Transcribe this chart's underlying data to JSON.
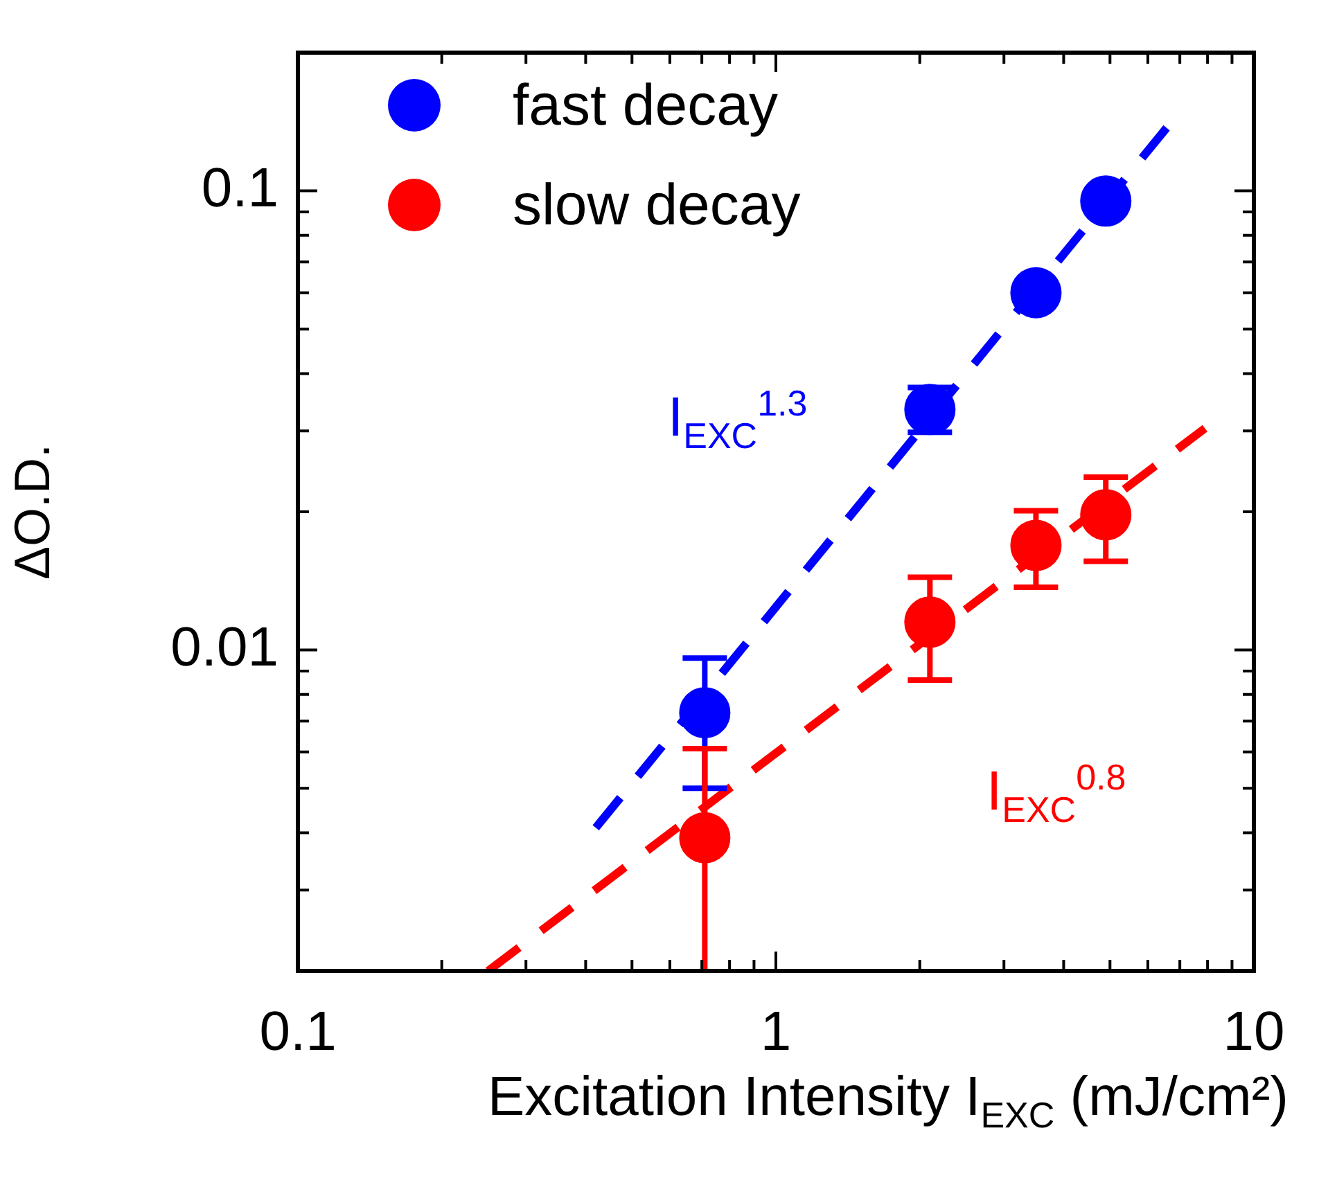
{
  "chart_data": {
    "type": "scatter",
    "xlabel": "Excitation Intensity I$_{EXC}$ (mJ/cm²)",
    "ylabel": "ΔO.D.",
    "log": "xy",
    "marker": "circle",
    "legend": "top left",
    "xlim": [
      0.1,
      10
    ],
    "xticks": [
      0.1,
      {
        "value": 0.2,
        "label": null
      },
      {
        "value": 0.3,
        "label": null
      },
      {
        "value": 0.4,
        "label": null
      },
      {
        "value": 0.5,
        "label": null
      },
      {
        "value": 0.6,
        "label": null
      },
      {
        "value": 0.7,
        "label": null
      },
      {
        "value": 0.8,
        "label": null
      },
      {
        "value": 0.9,
        "label": null
      },
      1,
      {
        "value": 2,
        "label": null
      },
      {
        "value": 3,
        "label": null
      },
      {
        "value": 4,
        "label": null
      },
      {
        "value": 5,
        "label": null
      },
      {
        "value": 6,
        "label": null
      },
      {
        "value": 7,
        "label": null
      },
      {
        "value": 8,
        "label": null
      },
      {
        "value": 9,
        "label": null
      },
      10
    ],
    "ylim": [
      0.002,
      0.2
    ],
    "yticks": [
      {
        "value": 0.002,
        "label": null
      },
      {
        "value": 0.003,
        "label": null
      },
      {
        "value": 0.004,
        "label": null
      },
      {
        "value": 0.005,
        "label": null
      },
      {
        "value": 0.006,
        "label": null
      },
      {
        "value": 0.007,
        "label": null
      },
      {
        "value": 0.008,
        "label": null
      },
      {
        "value": 0.009,
        "label": null
      },
      0.01,
      {
        "value": 0.02,
        "label": null
      },
      {
        "value": 0.03,
        "label": null
      },
      {
        "value": 0.04,
        "label": null
      },
      {
        "value": 0.05,
        "label": null
      },
      {
        "value": 0.06,
        "label": null
      },
      {
        "value": 0.07,
        "label": null
      },
      {
        "value": 0.08,
        "label": null
      },
      {
        "value": 0.09,
        "label": null
      },
      0.1,
      {
        "value": 0.2,
        "label": null
      }
    ],
    "series": [
      {
        "name": "fast decay",
        "color": "#0000ff",
        "x": [
          0.71,
          2.1,
          3.5,
          4.9
        ],
        "values": [
          0.0073,
          0.0334,
          0.06,
          0.095
        ],
        "errors": [
          [
            0.005,
            0.0096
          ],
          [
            0.0298,
            0.0373
          ],
          null,
          null
        ]
      },
      {
        "name": "slow decay",
        "color": "#ff0000",
        "x": [
          0.71,
          2.1,
          3.5,
          4.9
        ],
        "values": [
          0.0039,
          0.0115,
          0.0169,
          0.0197
        ],
        "errors": [
          [
            0.002,
            0.0061
          ],
          [
            0.0086,
            0.0144
          ],
          [
            0.0137,
            0.0201
          ],
          [
            0.0156,
            0.0238
          ]
        ]
      },
      {
        "type": "line",
        "color": "#0000ff",
        "line_style": "dashed",
        "marker": "none",
        "x": [
          0.42,
          6.6
        ],
        "values": [
          0.0041,
          0.138
        ]
      },
      {
        "type": "line",
        "color": "#ff0000",
        "line_style": "dashed",
        "marker": "none",
        "x": [
          0.25,
          7.9
        ],
        "values": [
          0.002,
          0.0304
        ]
      }
    ],
    "annotations": [
      "I$_{EXC}$$^{1.3}$",
      "I$_{EXC}$$^{0.8}$"
    ]
  }
}
